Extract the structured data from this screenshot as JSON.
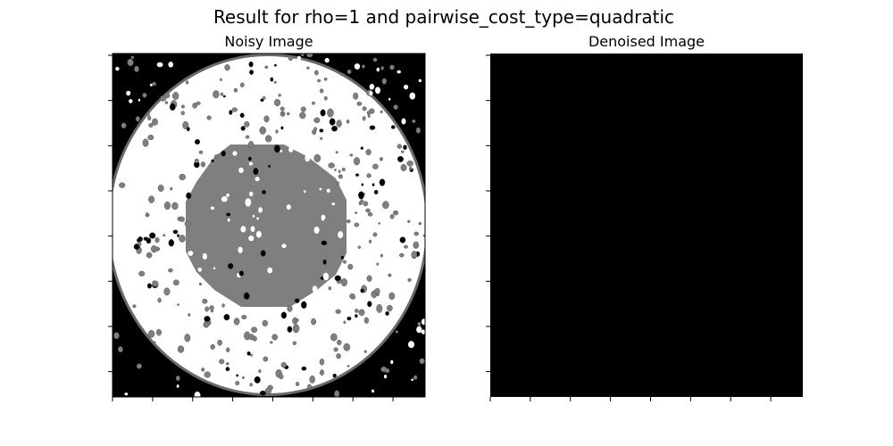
{
  "figure": {
    "suptitle": "Result for rho=1 and pairwise_cost_type=quadratic"
  },
  "colors": {
    "black": "#000000",
    "gray": "#7f7f7f",
    "white": "#ffffff",
    "edge": "#5f5f5f"
  },
  "chart_data": [
    {
      "type": "heatmap",
      "title": "Noisy Image",
      "colormap": "gray",
      "levels": [
        0,
        1,
        2
      ],
      "description": "three-level grayscale image: black background, white ring, gray central disk, scattered noise specks",
      "xticklabels": [],
      "yticklabels": []
    },
    {
      "type": "heatmap",
      "title": "Denoised Image",
      "colormap": "gray",
      "levels": [
        0
      ],
      "description": "uniform black image",
      "xticklabels": [],
      "yticklabels": []
    }
  ]
}
